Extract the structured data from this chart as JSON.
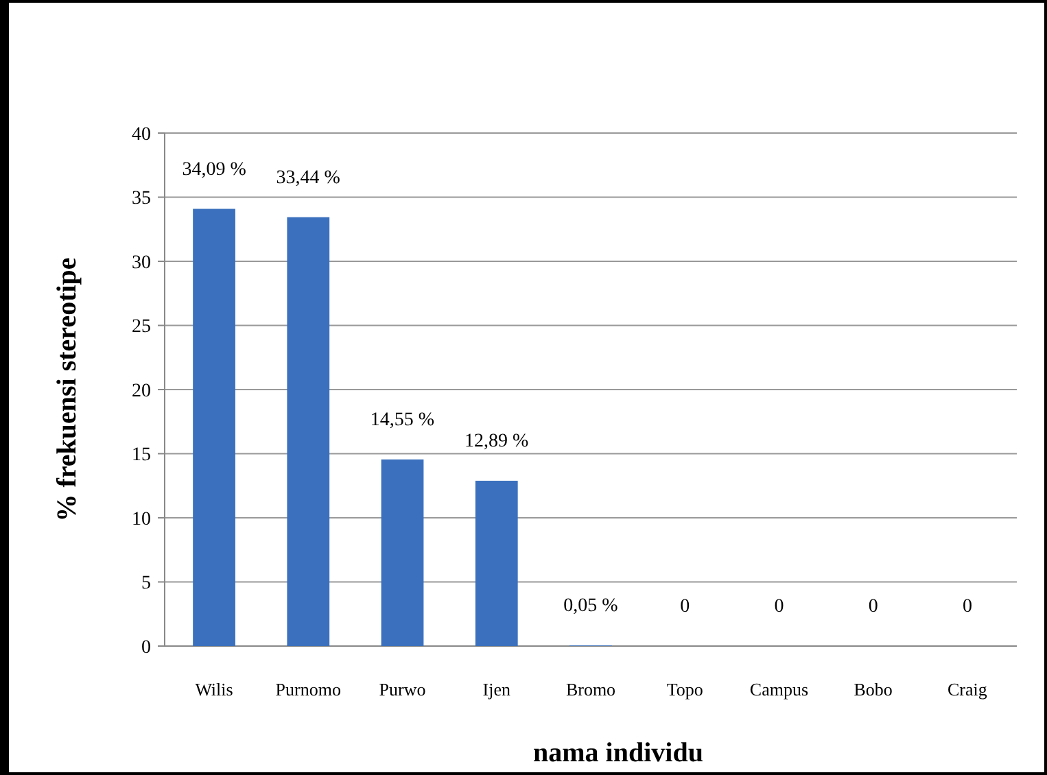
{
  "chart_data": {
    "type": "bar",
    "xlabel": "nama individu",
    "ylabel": "% frekuensi stereotipe",
    "categories": [
      "Wilis",
      "Purnomo",
      "Purwo",
      "Ijen",
      "Bromo",
      "Topo",
      "Campus",
      "Bobo",
      "Craig"
    ],
    "values": [
      34.09,
      33.44,
      14.55,
      12.89,
      0.05,
      0,
      0,
      0,
      0
    ],
    "value_labels": [
      "34,09 %",
      "33,44 %",
      "14,55 %",
      "12,89 %",
      "0,05 %",
      "0",
      "0",
      "0",
      "0"
    ],
    "color": "#3a70bd",
    "ylim": [
      0,
      40
    ],
    "yticks": [
      0,
      5,
      10,
      15,
      20,
      25,
      30,
      35,
      40
    ],
    "grid": "y"
  }
}
